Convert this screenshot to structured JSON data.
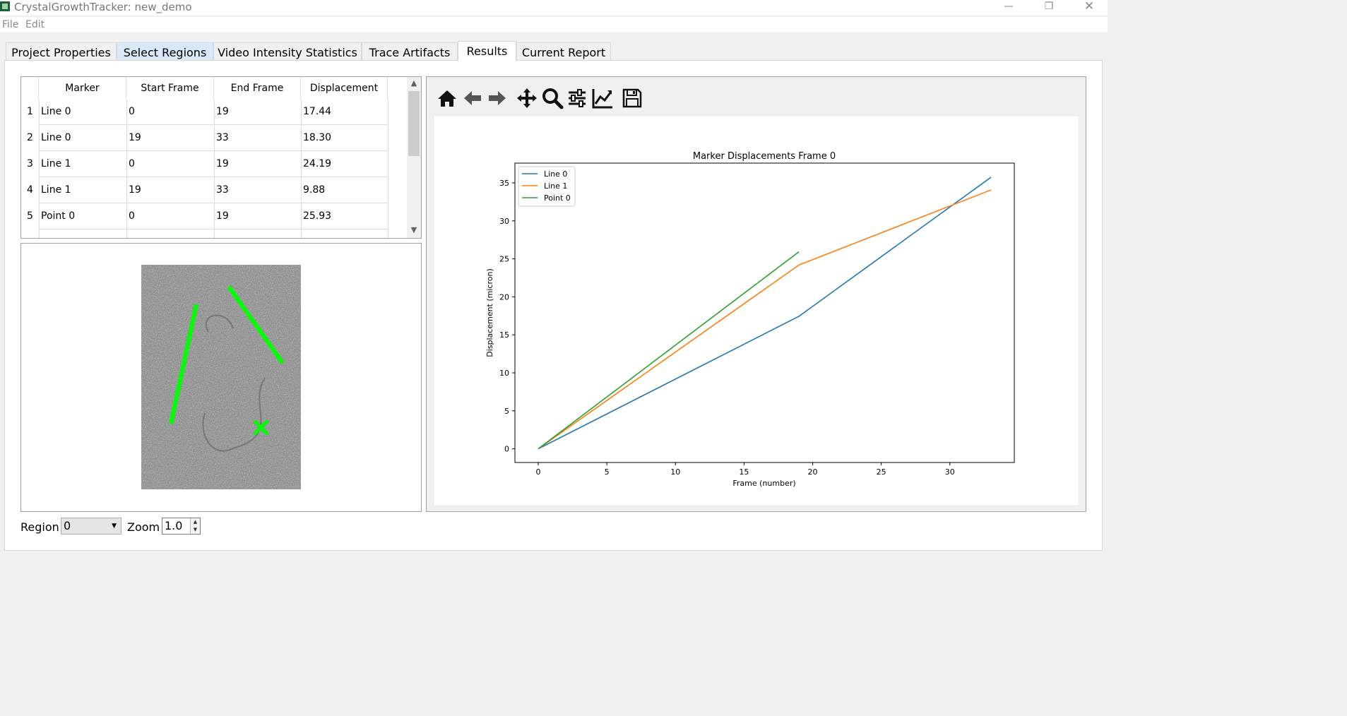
{
  "window": {
    "title": "CrystalGrowthTracker: new_demo",
    "controls": [
      "—",
      "❐",
      "✕"
    ]
  },
  "menu": [
    "File",
    "Edit"
  ],
  "tabs": [
    "Project Properties",
    "Select Regions",
    "Video Intensity Statistics",
    "Trace Artifacts",
    "Results",
    "Current Report"
  ],
  "active_tab": "Results",
  "table": {
    "headers": [
      "Marker",
      "Start Frame",
      "End Frame",
      "Displacement"
    ],
    "rows": [
      [
        "1",
        "Line 0",
        "0",
        "19",
        "17.44"
      ],
      [
        "2",
        "Line 0",
        "19",
        "33",
        "18.30"
      ],
      [
        "3",
        "Line 1",
        "0",
        "19",
        "24.19"
      ],
      [
        "4",
        "Line 1",
        "19",
        "33",
        "9.88"
      ],
      [
        "5",
        "Point 0",
        "0",
        "19",
        "25.93"
      ]
    ]
  },
  "toolbar": [
    "home-icon",
    "back-icon",
    "forward-icon",
    "pan-icon",
    "zoom-icon",
    "configure-subplots-icon",
    "edit-axis-icon",
    "save-icon"
  ],
  "bottom": {
    "region_label": "Region",
    "region_value": "0",
    "zoom_label": "Zoom",
    "zoom_value": "1.0"
  },
  "colors": {
    "line0": "#1f77b4",
    "line1": "#ff7f0e",
    "point0": "#2ca02c",
    "marker_overlay": "#00ff00",
    "tab_hover": "#d9e9f8"
  },
  "chart_data": {
    "type": "line",
    "title": "Marker Displacements Frame 0",
    "xlabel": "Frame (number)",
    "ylabel": "Displacement (micron)",
    "xlim": [
      -1.7,
      34.7
    ],
    "ylim": [
      -1.8,
      37.6
    ],
    "xticks": [
      0,
      5,
      10,
      15,
      20,
      25,
      30
    ],
    "yticks": [
      0,
      5,
      10,
      15,
      20,
      25,
      30,
      35
    ],
    "legend_position": "upper-left",
    "series": [
      {
        "name": "Line 0",
        "color": "#1f77b4",
        "x": [
          0,
          19,
          33
        ],
        "y": [
          0,
          17.44,
          35.74
        ]
      },
      {
        "name": "Line 1",
        "color": "#ff7f0e",
        "x": [
          0,
          19,
          33
        ],
        "y": [
          0,
          24.19,
          34.07
        ]
      },
      {
        "name": "Point 0",
        "color": "#2ca02c",
        "x": [
          0,
          19
        ],
        "y": [
          0,
          25.93
        ]
      }
    ]
  }
}
